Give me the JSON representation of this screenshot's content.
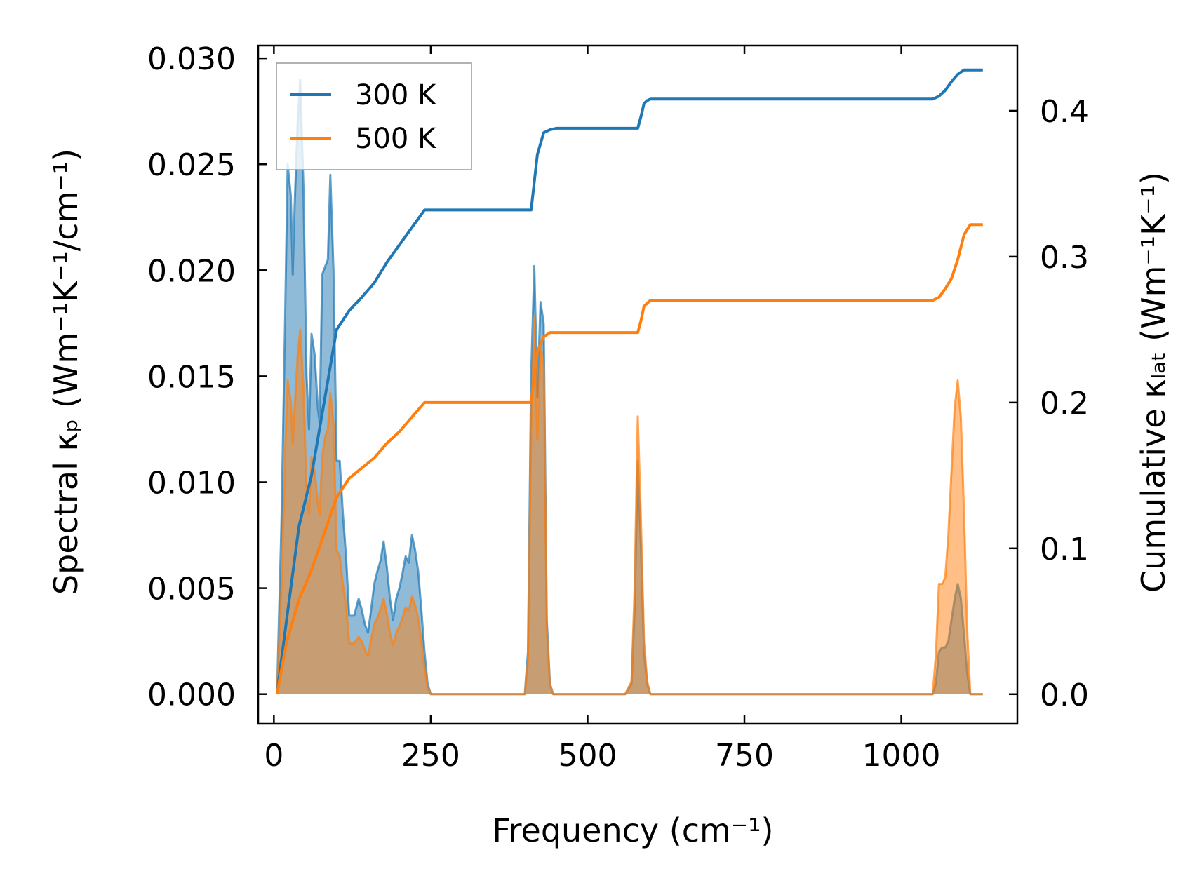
{
  "chart_data": {
    "type": "area+line (dual y-axis)",
    "xlabel": "Frequency (cm⁻¹)",
    "ylabel_left": "Spectral κₚ (Wm⁻¹K⁻¹/cm⁻¹)",
    "ylabel_right": "Cumulative κₗₐₜ (Wm⁻¹K⁻¹)",
    "xlim": [
      -25,
      1185
    ],
    "ylim_left": [
      -0.0014,
      0.0306
    ],
    "ylim_right": [
      -0.0203,
      0.4447
    ],
    "x_ticks": [
      0,
      250,
      500,
      750,
      1000
    ],
    "x_tick_labels": [
      "0",
      "250",
      "500",
      "750",
      "1000"
    ],
    "y_left_ticks": [
      0.0,
      0.005,
      0.01,
      0.015,
      0.02,
      0.025,
      0.03
    ],
    "y_left_tick_labels": [
      "0.000",
      "0.005",
      "0.010",
      "0.015",
      "0.020",
      "0.025",
      "0.030"
    ],
    "y_right_ticks": [
      0.0,
      0.1,
      0.2,
      0.3,
      0.4
    ],
    "y_right_tick_labels": [
      "0.0",
      "0.1",
      "0.2",
      "0.3",
      "0.4"
    ],
    "legend": {
      "position": "top-left",
      "entries": [
        "300 K",
        "500 K"
      ]
    },
    "series": [
      {
        "name": "300 K",
        "color": "#1f77b4",
        "spectral": {
          "x": [
            5,
            12,
            18,
            22,
            27,
            30,
            33,
            38,
            42,
            47,
            52,
            56,
            60,
            65,
            70,
            73,
            77,
            82,
            86,
            90,
            95,
            100,
            105,
            110,
            115,
            120,
            128,
            135,
            140,
            145,
            150,
            155,
            160,
            165,
            170,
            175,
            180,
            185,
            190,
            195,
            200,
            205,
            210,
            215,
            220,
            225,
            230,
            235,
            240,
            245,
            250,
            255,
            260,
            400,
            405,
            410,
            415,
            420,
            425,
            430,
            435,
            440,
            445,
            450,
            560,
            570,
            575,
            580,
            585,
            590,
            595,
            600,
            605,
            1050,
            1055,
            1060,
            1065,
            1070,
            1075,
            1080,
            1085,
            1090,
            1095,
            1100,
            1105,
            1110,
            1130
          ],
          "y": [
            0,
            0.008,
            0.018,
            0.025,
            0.0235,
            0.0198,
            0.023,
            0.027,
            0.029,
            0.024,
            0.015,
            0.0125,
            0.017,
            0.016,
            0.0135,
            0.0128,
            0.0198,
            0.0202,
            0.0205,
            0.0245,
            0.02,
            0.011,
            0.011,
            0.0085,
            0.0065,
            0.0037,
            0.0037,
            0.0045,
            0.004,
            0.0033,
            0.0029,
            0.004,
            0.0052,
            0.0058,
            0.0063,
            0.0072,
            0.006,
            0.0045,
            0.0035,
            0.0045,
            0.005,
            0.0057,
            0.0065,
            0.0062,
            0.0075,
            0.0068,
            0.0058,
            0.004,
            0.002,
            0.0005,
            0,
            0,
            0,
            0,
            0.002,
            0.015,
            0.0202,
            0.014,
            0.0185,
            0.0175,
            0.0035,
            0.0005,
            0,
            0,
            0,
            0.0005,
            0.004,
            0.011,
            0.007,
            0.002,
            0.0005,
            0,
            0,
            0,
            0.0005,
            0.002,
            0.0022,
            0.0022,
            0.0025,
            0.0035,
            0.0045,
            0.0052,
            0.0045,
            0.0028,
            0.001,
            0,
            0
          ]
        },
        "cumulative": {
          "x": [
            5,
            20,
            40,
            60,
            80,
            100,
            120,
            140,
            160,
            180,
            200,
            220,
            240,
            260,
            410,
            420,
            430,
            440,
            450,
            580,
            585,
            590,
            595,
            600,
            1050,
            1060,
            1070,
            1080,
            1090,
            1100,
            1110,
            1130
          ],
          "y": [
            0,
            0.05,
            0.115,
            0.15,
            0.2,
            0.25,
            0.263,
            0.272,
            0.282,
            0.296,
            0.308,
            0.32,
            0.332,
            0.332,
            0.332,
            0.37,
            0.385,
            0.387,
            0.388,
            0.388,
            0.396,
            0.405,
            0.407,
            0.408,
            0.408,
            0.41,
            0.414,
            0.42,
            0.425,
            0.428,
            0.428,
            0.428
          ]
        }
      },
      {
        "name": "500 K",
        "color": "#ff7f0e",
        "spectral": {
          "x": [
            5,
            12,
            18,
            22,
            27,
            30,
            33,
            38,
            42,
            47,
            52,
            56,
            60,
            65,
            70,
            73,
            77,
            82,
            86,
            90,
            95,
            100,
            105,
            110,
            115,
            120,
            128,
            135,
            140,
            145,
            150,
            155,
            160,
            165,
            170,
            175,
            180,
            185,
            190,
            195,
            200,
            205,
            210,
            215,
            220,
            225,
            230,
            235,
            240,
            245,
            250,
            255,
            260,
            400,
            405,
            410,
            415,
            420,
            425,
            430,
            435,
            440,
            445,
            450,
            560,
            570,
            575,
            580,
            585,
            590,
            595,
            600,
            605,
            1050,
            1055,
            1060,
            1065,
            1070,
            1075,
            1080,
            1085,
            1090,
            1095,
            1100,
            1105,
            1110,
            1130
          ],
          "y": [
            0,
            0.005,
            0.0115,
            0.0148,
            0.0138,
            0.0118,
            0.0135,
            0.016,
            0.0172,
            0.0145,
            0.0095,
            0.0085,
            0.0112,
            0.0105,
            0.009,
            0.0085,
            0.0112,
            0.0122,
            0.0125,
            0.0142,
            0.0128,
            0.0068,
            0.0065,
            0.0052,
            0.0042,
            0.0024,
            0.0024,
            0.0027,
            0.0025,
            0.0021,
            0.0018,
            0.0026,
            0.0033,
            0.0036,
            0.004,
            0.0045,
            0.0038,
            0.0029,
            0.0023,
            0.0029,
            0.0032,
            0.0036,
            0.0041,
            0.0039,
            0.0046,
            0.0042,
            0.0036,
            0.0025,
            0.0013,
            0.0003,
            0,
            0,
            0,
            0,
            0.0015,
            0.0125,
            0.0178,
            0.012,
            0.0165,
            0.0155,
            0.003,
            0.0004,
            0,
            0,
            0,
            0.0006,
            0.005,
            0.0131,
            0.0082,
            0.0025,
            0.0006,
            0,
            0,
            0,
            0.0018,
            0.0052,
            0.0052,
            0.0055,
            0.0075,
            0.0105,
            0.0135,
            0.0148,
            0.013,
            0.0085,
            0.003,
            0,
            0
          ]
        },
        "cumulative": {
          "x": [
            5,
            20,
            40,
            60,
            80,
            100,
            120,
            140,
            160,
            180,
            200,
            220,
            240,
            260,
            410,
            420,
            430,
            440,
            450,
            580,
            585,
            590,
            595,
            600,
            1050,
            1060,
            1070,
            1080,
            1090,
            1100,
            1110,
            1130
          ],
          "y": [
            0,
            0.035,
            0.065,
            0.085,
            0.11,
            0.135,
            0.148,
            0.155,
            0.162,
            0.172,
            0.18,
            0.19,
            0.2,
            0.2,
            0.2,
            0.235,
            0.245,
            0.248,
            0.248,
            0.248,
            0.256,
            0.266,
            0.268,
            0.27,
            0.27,
            0.272,
            0.278,
            0.285,
            0.298,
            0.315,
            0.322,
            0.322
          ]
        }
      }
    ]
  }
}
